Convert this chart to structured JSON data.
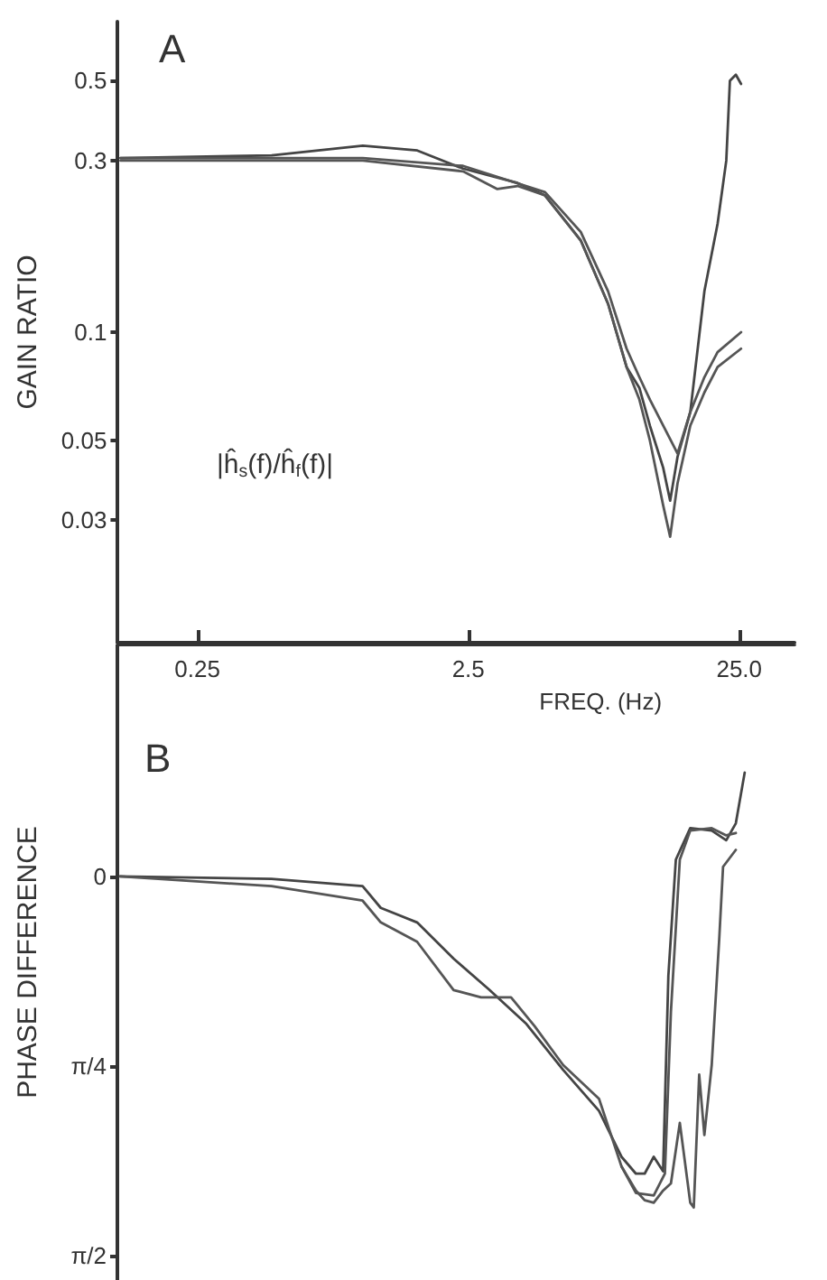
{
  "chart_data": [
    {
      "type": "line",
      "ylabel": "GAIN RATIO",
      "xlabel": "FREQ. (Hz)",
      "annotations": [
        "A",
        "|ĥ$_{s}$(f)/ĥ$_{f}$(f)|"
      ],
      "log": "xy",
      "xlim": [
        0.127,
        40
      ],
      "xticks": [
        0.25,
        2.5,
        {
          "value": 25,
          "label": "25.0"
        }
      ],
      "ylim": [
        0.0137,
        0.73
      ],
      "yticks": [
        0.03,
        0.05,
        0.1,
        0.3,
        0.5
      ],
      "marker": "none",
      "line_style": "solid",
      "series": [
        {
          "color": "#444444",
          "x": [
            0.13,
            0.47,
            1.02,
            1.62,
            2.39,
            3.8,
            4.8,
            6.5,
            8.2,
            9.6,
            10.7,
            11.7,
            13.1,
            13.9,
            14.8,
            16.5,
            18.6,
            20.8,
            22.4,
            23.1,
            24.3,
            25.4
          ],
          "values": [
            0.305,
            0.31,
            0.33,
            0.32,
            0.285,
            0.26,
            0.24,
            0.18,
            0.12,
            0.08,
            0.07,
            0.055,
            0.042,
            0.034,
            0.045,
            0.06,
            0.13,
            0.2,
            0.3,
            0.5,
            0.52,
            0.49
          ]
        },
        {
          "color": "#555555",
          "x": [
            0.13,
            1.02,
            2.39,
            3.2,
            3.8,
            4.8,
            6.5,
            8.2,
            9.6,
            10.7,
            11.7,
            13.1,
            13.9,
            14.8,
            16.5,
            18.6,
            20.8,
            25.4
          ],
          "values": [
            0.3,
            0.3,
            0.28,
            0.25,
            0.255,
            0.24,
            0.18,
            0.12,
            0.08,
            0.065,
            0.05,
            0.033,
            0.027,
            0.038,
            0.055,
            0.068,
            0.08,
            0.09
          ]
        },
        {
          "color": "#555555",
          "x": [
            0.13,
            1.02,
            2.39,
            4.8,
            6.5,
            8.2,
            9.6,
            10.7,
            11.7,
            13.1,
            14.8,
            16.5,
            18.6,
            20.8,
            25.4
          ],
          "values": [
            0.305,
            0.305,
            0.29,
            0.245,
            0.19,
            0.13,
            0.09,
            0.075,
            0.065,
            0.055,
            0.046,
            0.06,
            0.075,
            0.088,
            0.1
          ]
        }
      ]
    },
    {
      "type": "line",
      "ylabel": "PHASE DIFFERENCE",
      "annotations": [
        "B"
      ],
      "log": "x",
      "xlim": [
        0.127,
        40
      ],
      "ylim": [
        1.67,
        -0.96
      ],
      "yticks": [
        {
          "value": 0,
          "label": "0"
        },
        {
          "value": 0.785,
          "label": "π/4"
        },
        {
          "value": 1.571,
          "label": "π/2"
        }
      ],
      "tick_labels": "y",
      "marker": "none",
      "line_style": "solid",
      "series": [
        {
          "color": "#444444",
          "x": [
            0.13,
            0.47,
            1.02,
            1.19,
            1.62,
            2.21,
            3.0,
            4.1,
            5.6,
            7.6,
            9.2,
            10.4,
            11.2,
            12.1,
            13.1,
            13.7,
            14.6,
            16.5,
            19.8,
            22.4,
            24.3,
            26.2
          ],
          "values": [
            0,
            0.01,
            0.04,
            0.13,
            0.19,
            0.34,
            0.47,
            0.61,
            0.8,
            0.97,
            1.16,
            1.23,
            1.23,
            1.16,
            1.22,
            0.41,
            -0.07,
            -0.2,
            -0.19,
            -0.15,
            -0.22,
            -0.43
          ]
        },
        {
          "color": "#555555",
          "x": [
            0.13,
            0.47,
            1.02,
            1.19,
            1.62,
            2.21,
            2.79,
            3.6,
            4.4,
            5.6,
            7.6,
            9.2,
            10.4,
            12.1,
            13.3,
            14.0,
            15.1,
            16.5,
            19.8,
            22.4,
            24.3
          ],
          "values": [
            0,
            0.04,
            0.1,
            0.19,
            0.27,
            0.47,
            0.5,
            0.5,
            0.62,
            0.78,
            0.92,
            1.2,
            1.31,
            1.32,
            1.23,
            0.56,
            -0.07,
            -0.19,
            -0.2,
            -0.17,
            -0.18
          ]
        },
        {
          "color": "#555555",
          "x": [
            9.2,
            10.4,
            11.2,
            12.1,
            13.1,
            14.0,
            15.1,
            16.5,
            17.0,
            17.8,
            18.6,
            19.8,
            21.1,
            21.8,
            24.3
          ],
          "values": [
            1.2,
            1.3,
            1.34,
            1.35,
            1.3,
            1.27,
            1.02,
            1.35,
            1.37,
            0.82,
            1.07,
            0.78,
            0.26,
            -0.04,
            -0.11
          ]
        }
      ]
    }
  ]
}
